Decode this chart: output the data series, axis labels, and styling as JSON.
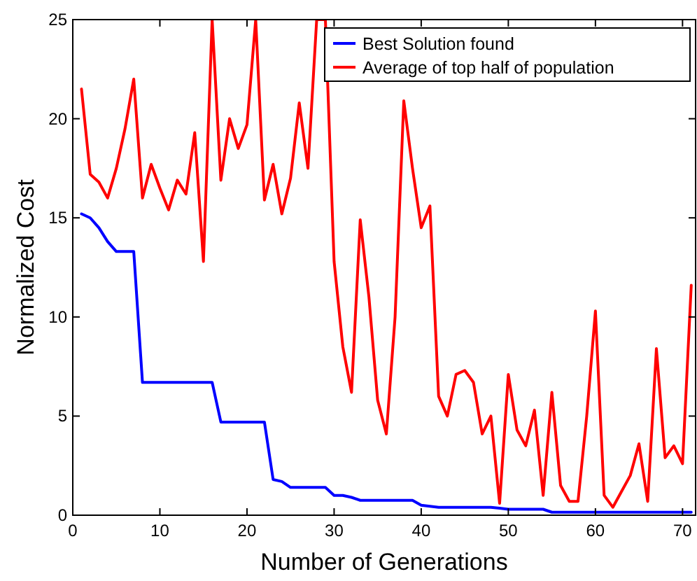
{
  "chart_data": {
    "type": "line",
    "xlabel": "Number of Generations",
    "ylabel": "Normalized Cost",
    "x": [
      1,
      2,
      3,
      4,
      5,
      6,
      7,
      8,
      9,
      10,
      11,
      12,
      13,
      14,
      15,
      16,
      17,
      18,
      19,
      20,
      21,
      22,
      23,
      24,
      25,
      26,
      27,
      28,
      29,
      30,
      31,
      32,
      33,
      34,
      35,
      36,
      37,
      38,
      39,
      40,
      41,
      42,
      43,
      44,
      45,
      46,
      47,
      48,
      49,
      50,
      51,
      52,
      53,
      54,
      55,
      56,
      57,
      58,
      59,
      60,
      61,
      62,
      63,
      64,
      65,
      66,
      67,
      68,
      69,
      70,
      71
    ],
    "series": [
      {
        "name": "Best Solution found",
        "color": "#0000ff",
        "values": [
          15.2,
          15.0,
          14.5,
          13.8,
          13.3,
          13.3,
          13.3,
          6.7,
          6.7,
          6.7,
          6.7,
          6.7,
          6.7,
          6.7,
          6.7,
          6.7,
          4.7,
          4.7,
          4.7,
          4.7,
          4.7,
          4.7,
          1.8,
          1.7,
          1.4,
          1.4,
          1.4,
          1.4,
          1.4,
          1.0,
          1.0,
          0.9,
          0.75,
          0.75,
          0.75,
          0.75,
          0.75,
          0.75,
          0.75,
          0.5,
          0.45,
          0.4,
          0.4,
          0.4,
          0.4,
          0.4,
          0.4,
          0.4,
          0.35,
          0.3,
          0.3,
          0.3,
          0.3,
          0.3,
          0.15,
          0.15,
          0.15,
          0.15,
          0.15,
          0.15,
          0.15,
          0.15,
          0.15,
          0.15,
          0.15,
          0.15,
          0.15,
          0.15,
          0.15,
          0.15,
          0.15
        ]
      },
      {
        "name": "Average of top half of population",
        "color": "#ff0000",
        "values": [
          21.5,
          17.2,
          16.8,
          16.0,
          17.5,
          19.5,
          22.0,
          16.0,
          17.7,
          16.5,
          15.4,
          16.9,
          16.2,
          19.3,
          12.8,
          25,
          16.9,
          20.0,
          18.5,
          19.7,
          25,
          15.9,
          17.7,
          15.2,
          17.0,
          20.8,
          17.5,
          25,
          25,
          12.8,
          8.5,
          6.2,
          14.9,
          11.0,
          5.8,
          4.1,
          10.0,
          20.9,
          17.5,
          14.5,
          15.6,
          6.0,
          5.0,
          7.1,
          7.3,
          6.7,
          4.1,
          5.0,
          0.6,
          7.1,
          4.3,
          3.5,
          5.3,
          1.0,
          6.2,
          1.5,
          0.7,
          0.7,
          5.0,
          10.3,
          1.0,
          0.4,
          1.2,
          2.0,
          3.6,
          0.7,
          8.4,
          2.9,
          3.5,
          2.6,
          11.6
        ]
      }
    ],
    "xlim": [
      0,
      71.5
    ],
    "xticks": [
      0,
      10,
      20,
      30,
      40,
      50,
      60,
      70
    ],
    "ylim": [
      0,
      25
    ],
    "yticks": [
      0,
      5,
      10,
      15,
      20,
      25
    ],
    "grid": false,
    "legend": "top right",
    "line_style": "solid",
    "marker": "none"
  }
}
